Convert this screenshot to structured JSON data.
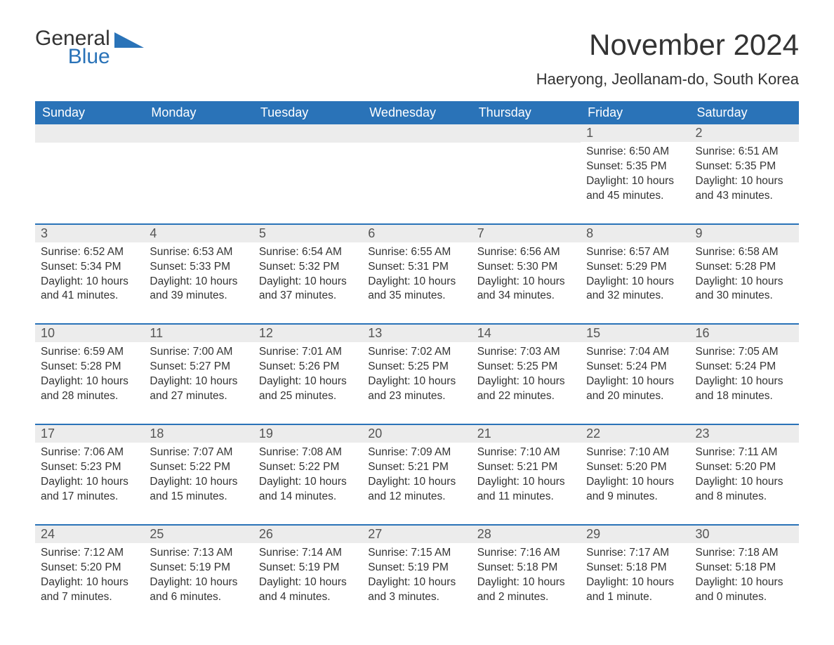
{
  "logo": {
    "line1": "General",
    "line2": "Blue",
    "iconColor": "#2a73b8"
  },
  "title": "November 2024",
  "location": "Haeryong, Jeollanam-do, South Korea",
  "colors": {
    "headerBg": "#2a73b8",
    "headerText": "#ffffff",
    "dayNumBg": "#ececec",
    "rowBorder": "#2a73b8",
    "bodyText": "#333333",
    "background": "#ffffff"
  },
  "typography": {
    "titleFontSize": 42,
    "locationFontSize": 22,
    "headerFontSize": 18,
    "dayNumFontSize": 18,
    "bodyFontSize": 15.5
  },
  "dayNames": [
    "Sunday",
    "Monday",
    "Tuesday",
    "Wednesday",
    "Thursday",
    "Friday",
    "Saturday"
  ],
  "weeks": [
    [
      null,
      null,
      null,
      null,
      null,
      {
        "num": "1",
        "sunrise": "Sunrise: 6:50 AM",
        "sunset": "Sunset: 5:35 PM",
        "daylight1": "Daylight: 10 hours",
        "daylight2": "and 45 minutes."
      },
      {
        "num": "2",
        "sunrise": "Sunrise: 6:51 AM",
        "sunset": "Sunset: 5:35 PM",
        "daylight1": "Daylight: 10 hours",
        "daylight2": "and 43 minutes."
      }
    ],
    [
      {
        "num": "3",
        "sunrise": "Sunrise: 6:52 AM",
        "sunset": "Sunset: 5:34 PM",
        "daylight1": "Daylight: 10 hours",
        "daylight2": "and 41 minutes."
      },
      {
        "num": "4",
        "sunrise": "Sunrise: 6:53 AM",
        "sunset": "Sunset: 5:33 PM",
        "daylight1": "Daylight: 10 hours",
        "daylight2": "and 39 minutes."
      },
      {
        "num": "5",
        "sunrise": "Sunrise: 6:54 AM",
        "sunset": "Sunset: 5:32 PM",
        "daylight1": "Daylight: 10 hours",
        "daylight2": "and 37 minutes."
      },
      {
        "num": "6",
        "sunrise": "Sunrise: 6:55 AM",
        "sunset": "Sunset: 5:31 PM",
        "daylight1": "Daylight: 10 hours",
        "daylight2": "and 35 minutes."
      },
      {
        "num": "7",
        "sunrise": "Sunrise: 6:56 AM",
        "sunset": "Sunset: 5:30 PM",
        "daylight1": "Daylight: 10 hours",
        "daylight2": "and 34 minutes."
      },
      {
        "num": "8",
        "sunrise": "Sunrise: 6:57 AM",
        "sunset": "Sunset: 5:29 PM",
        "daylight1": "Daylight: 10 hours",
        "daylight2": "and 32 minutes."
      },
      {
        "num": "9",
        "sunrise": "Sunrise: 6:58 AM",
        "sunset": "Sunset: 5:28 PM",
        "daylight1": "Daylight: 10 hours",
        "daylight2": "and 30 minutes."
      }
    ],
    [
      {
        "num": "10",
        "sunrise": "Sunrise: 6:59 AM",
        "sunset": "Sunset: 5:28 PM",
        "daylight1": "Daylight: 10 hours",
        "daylight2": "and 28 minutes."
      },
      {
        "num": "11",
        "sunrise": "Sunrise: 7:00 AM",
        "sunset": "Sunset: 5:27 PM",
        "daylight1": "Daylight: 10 hours",
        "daylight2": "and 27 minutes."
      },
      {
        "num": "12",
        "sunrise": "Sunrise: 7:01 AM",
        "sunset": "Sunset: 5:26 PM",
        "daylight1": "Daylight: 10 hours",
        "daylight2": "and 25 minutes."
      },
      {
        "num": "13",
        "sunrise": "Sunrise: 7:02 AM",
        "sunset": "Sunset: 5:25 PM",
        "daylight1": "Daylight: 10 hours",
        "daylight2": "and 23 minutes."
      },
      {
        "num": "14",
        "sunrise": "Sunrise: 7:03 AM",
        "sunset": "Sunset: 5:25 PM",
        "daylight1": "Daylight: 10 hours",
        "daylight2": "and 22 minutes."
      },
      {
        "num": "15",
        "sunrise": "Sunrise: 7:04 AM",
        "sunset": "Sunset: 5:24 PM",
        "daylight1": "Daylight: 10 hours",
        "daylight2": "and 20 minutes."
      },
      {
        "num": "16",
        "sunrise": "Sunrise: 7:05 AM",
        "sunset": "Sunset: 5:24 PM",
        "daylight1": "Daylight: 10 hours",
        "daylight2": "and 18 minutes."
      }
    ],
    [
      {
        "num": "17",
        "sunrise": "Sunrise: 7:06 AM",
        "sunset": "Sunset: 5:23 PM",
        "daylight1": "Daylight: 10 hours",
        "daylight2": "and 17 minutes."
      },
      {
        "num": "18",
        "sunrise": "Sunrise: 7:07 AM",
        "sunset": "Sunset: 5:22 PM",
        "daylight1": "Daylight: 10 hours",
        "daylight2": "and 15 minutes."
      },
      {
        "num": "19",
        "sunrise": "Sunrise: 7:08 AM",
        "sunset": "Sunset: 5:22 PM",
        "daylight1": "Daylight: 10 hours",
        "daylight2": "and 14 minutes."
      },
      {
        "num": "20",
        "sunrise": "Sunrise: 7:09 AM",
        "sunset": "Sunset: 5:21 PM",
        "daylight1": "Daylight: 10 hours",
        "daylight2": "and 12 minutes."
      },
      {
        "num": "21",
        "sunrise": "Sunrise: 7:10 AM",
        "sunset": "Sunset: 5:21 PM",
        "daylight1": "Daylight: 10 hours",
        "daylight2": "and 11 minutes."
      },
      {
        "num": "22",
        "sunrise": "Sunrise: 7:10 AM",
        "sunset": "Sunset: 5:20 PM",
        "daylight1": "Daylight: 10 hours",
        "daylight2": "and 9 minutes."
      },
      {
        "num": "23",
        "sunrise": "Sunrise: 7:11 AM",
        "sunset": "Sunset: 5:20 PM",
        "daylight1": "Daylight: 10 hours",
        "daylight2": "and 8 minutes."
      }
    ],
    [
      {
        "num": "24",
        "sunrise": "Sunrise: 7:12 AM",
        "sunset": "Sunset: 5:20 PM",
        "daylight1": "Daylight: 10 hours",
        "daylight2": "and 7 minutes."
      },
      {
        "num": "25",
        "sunrise": "Sunrise: 7:13 AM",
        "sunset": "Sunset: 5:19 PM",
        "daylight1": "Daylight: 10 hours",
        "daylight2": "and 6 minutes."
      },
      {
        "num": "26",
        "sunrise": "Sunrise: 7:14 AM",
        "sunset": "Sunset: 5:19 PM",
        "daylight1": "Daylight: 10 hours",
        "daylight2": "and 4 minutes."
      },
      {
        "num": "27",
        "sunrise": "Sunrise: 7:15 AM",
        "sunset": "Sunset: 5:19 PM",
        "daylight1": "Daylight: 10 hours",
        "daylight2": "and 3 minutes."
      },
      {
        "num": "28",
        "sunrise": "Sunrise: 7:16 AM",
        "sunset": "Sunset: 5:18 PM",
        "daylight1": "Daylight: 10 hours",
        "daylight2": "and 2 minutes."
      },
      {
        "num": "29",
        "sunrise": "Sunrise: 7:17 AM",
        "sunset": "Sunset: 5:18 PM",
        "daylight1": "Daylight: 10 hours",
        "daylight2": "and 1 minute."
      },
      {
        "num": "30",
        "sunrise": "Sunrise: 7:18 AM",
        "sunset": "Sunset: 5:18 PM",
        "daylight1": "Daylight: 10 hours",
        "daylight2": "and 0 minutes."
      }
    ]
  ]
}
